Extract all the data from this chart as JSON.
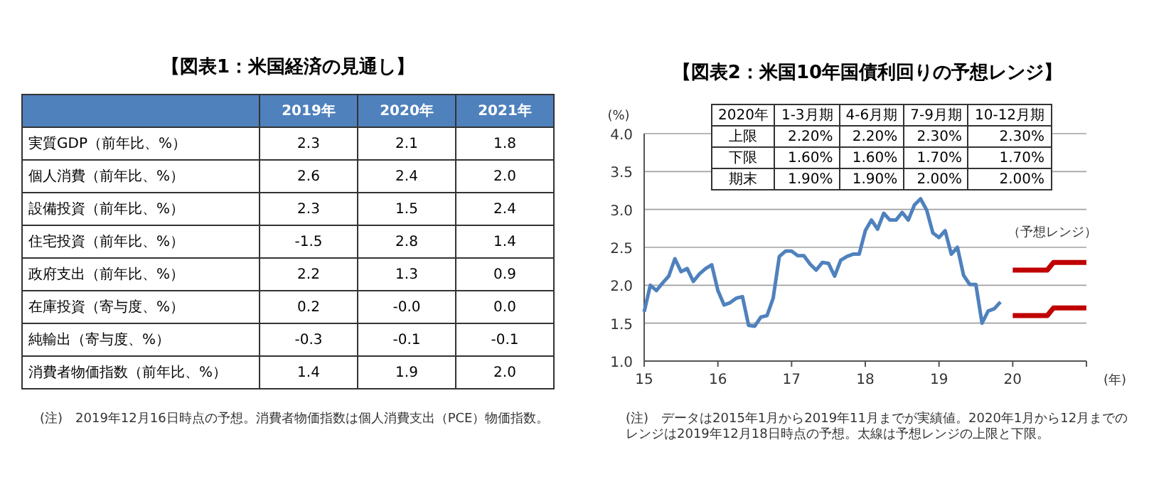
{
  "chart_data": [
    {
      "type": "other",
      "title": "【図表1：米国経済の見通し】",
      "categories": [
        "実質GDP（前年比、%）",
        "個人消費（前年比、%）",
        "設備投資（前年比、%）",
        "住宅投資（前年比、%）",
        "政府支出（前年比、%）",
        "在庫投資（寄与度、%）",
        "純輸出（寄与度、%）",
        "消費者物価指数（前年比、%）"
      ],
      "series": [
        {
          "name": "2019年",
          "values": [
            2.3,
            2.6,
            2.3,
            -1.5,
            2.2,
            0.2,
            -0.3,
            1.4
          ],
          "value_labels": [
            "2.3",
            "2.6",
            "2.3",
            "-1.5",
            "2.2",
            "0.2",
            "-0.3",
            "1.4"
          ]
        },
        {
          "name": "2020年",
          "values": [
            2.1,
            2.4,
            1.5,
            2.8,
            1.3,
            0.0,
            -0.1,
            1.9
          ],
          "value_labels": [
            "2.1",
            "2.4",
            "1.5",
            "2.8",
            "1.3",
            "-0.0",
            "-0.1",
            "1.9"
          ]
        },
        {
          "name": "2021年",
          "values": [
            1.8,
            2.0,
            2.4,
            1.4,
            0.9,
            0.0,
            -0.1,
            2.0
          ],
          "value_labels": [
            "1.8",
            "2.0",
            "2.4",
            "1.4",
            "0.9",
            "0.0",
            "-0.1",
            "2.0"
          ]
        }
      ],
      "annotations": [
        "(注)　2019年12月16日時点の予想。消費者物価指数は個人消費支出（PCE）物価指数。"
      ]
    },
    {
      "type": "line",
      "title": "【図表2：米国10年国債利回りの予想レンジ】",
      "xlabel": "(年)",
      "ylabel": "(%)",
      "xlim": [
        "2015-01-01",
        "2021-01-01"
      ],
      "xticks": [
        {
          "value": "2015-01-01",
          "label": "15"
        },
        {
          "value": "2016-01-01",
          "label": "16"
        },
        {
          "value": "2017-01-01",
          "label": "17"
        },
        {
          "value": "2018-01-01",
          "label": "18"
        },
        {
          "value": "2019-01-01",
          "label": "19"
        },
        {
          "value": "2020-01-01",
          "label": "20"
        },
        {
          "value": "2021-01-01",
          "label": null
        }
      ],
      "ylim": [
        1.0,
        4.0
      ],
      "yticks": [
        {
          "value": 1.0,
          "label": "1.0"
        },
        {
          "value": 1.5,
          "label": "1.5"
        },
        {
          "value": 2.0,
          "label": "2.0"
        },
        {
          "value": 2.5,
          "label": "2.5"
        },
        {
          "value": 3.0,
          "label": "3.0"
        },
        {
          "value": 3.5,
          "label": "3.5"
        },
        {
          "value": 4.0,
          "label": "4.0"
        }
      ],
      "grid": "y",
      "series": [
        {
          "color": "#4f81bd",
          "x": [
            "2015-01",
            "2015-02",
            "2015-03",
            "2015-04",
            "2015-05",
            "2015-06",
            "2015-07",
            "2015-08",
            "2015-09",
            "2015-10",
            "2015-11",
            "2015-12",
            "2016-01",
            "2016-02",
            "2016-03",
            "2016-04",
            "2016-05",
            "2016-06",
            "2016-07",
            "2016-08",
            "2016-09",
            "2016-10",
            "2016-11",
            "2016-12",
            "2017-01",
            "2017-02",
            "2017-03",
            "2017-04",
            "2017-05",
            "2017-06",
            "2017-07",
            "2017-08",
            "2017-09",
            "2017-10",
            "2017-11",
            "2017-12",
            "2018-01",
            "2018-02",
            "2018-03",
            "2018-04",
            "2018-05",
            "2018-06",
            "2018-07",
            "2018-08",
            "2018-09",
            "2018-10",
            "2018-11",
            "2018-12",
            "2019-01",
            "2019-02",
            "2019-03",
            "2019-04",
            "2019-05",
            "2019-06",
            "2019-07",
            "2019-08",
            "2019-09",
            "2019-10",
            "2019-11"
          ],
          "values": [
            1.65,
            2.0,
            1.93,
            2.03,
            2.12,
            2.35,
            2.18,
            2.22,
            2.05,
            2.15,
            2.22,
            2.27,
            1.93,
            1.74,
            1.77,
            1.83,
            1.85,
            1.47,
            1.46,
            1.58,
            1.6,
            1.83,
            2.38,
            2.45,
            2.45,
            2.39,
            2.39,
            2.28,
            2.2,
            2.3,
            2.29,
            2.12,
            2.33,
            2.38,
            2.41,
            2.41,
            2.72,
            2.86,
            2.74,
            2.95,
            2.86,
            2.86,
            2.96,
            2.86,
            3.06,
            3.14,
            2.99,
            2.69,
            2.63,
            2.72,
            2.41,
            2.5,
            2.13,
            2.01,
            2.01,
            1.5,
            1.66,
            1.69,
            1.78
          ]
        },
        {
          "color": "#c00000",
          "x": [
            "2020-01-01",
            "2020-06-20",
            "2020-07-20",
            "2020-12-31"
          ],
          "values": [
            2.2,
            2.2,
            2.3,
            2.3
          ]
        },
        {
          "color": "#c00000",
          "x": [
            "2020-01-01",
            "2020-06-20",
            "2020-07-20",
            "2020-12-31"
          ],
          "values": [
            1.6,
            1.6,
            1.7,
            1.7
          ]
        }
      ],
      "annotations": [
        "（予想レンジ）",
        "(注)　データは2015年1月から2019年11月までが実績値。2020年1月から12月までのレンジは2019年12月18日時点の予想。太線は予想レンジの上限と下限。"
      ]
    },
    {
      "type": "other",
      "title": "2020年",
      "categories": [
        "1-3月期",
        "4-6月期",
        "7-9月期",
        "10-12月期"
      ],
      "series": [
        {
          "name": "上限",
          "values": [
            2.2,
            2.2,
            2.3,
            2.3
          ],
          "value_labels": [
            "2.20%",
            "2.20%",
            "2.30%",
            "2.30%"
          ]
        },
        {
          "name": "下限",
          "values": [
            1.6,
            1.6,
            1.7,
            1.7
          ],
          "value_labels": [
            "1.60%",
            "1.60%",
            "1.70%",
            "1.70%"
          ]
        },
        {
          "name": "期末",
          "values": [
            1.9,
            1.9,
            2.0,
            2.0
          ],
          "value_labels": [
            "1.90%",
            "1.90%",
            "2.00%",
            "2.00%"
          ]
        }
      ]
    }
  ]
}
